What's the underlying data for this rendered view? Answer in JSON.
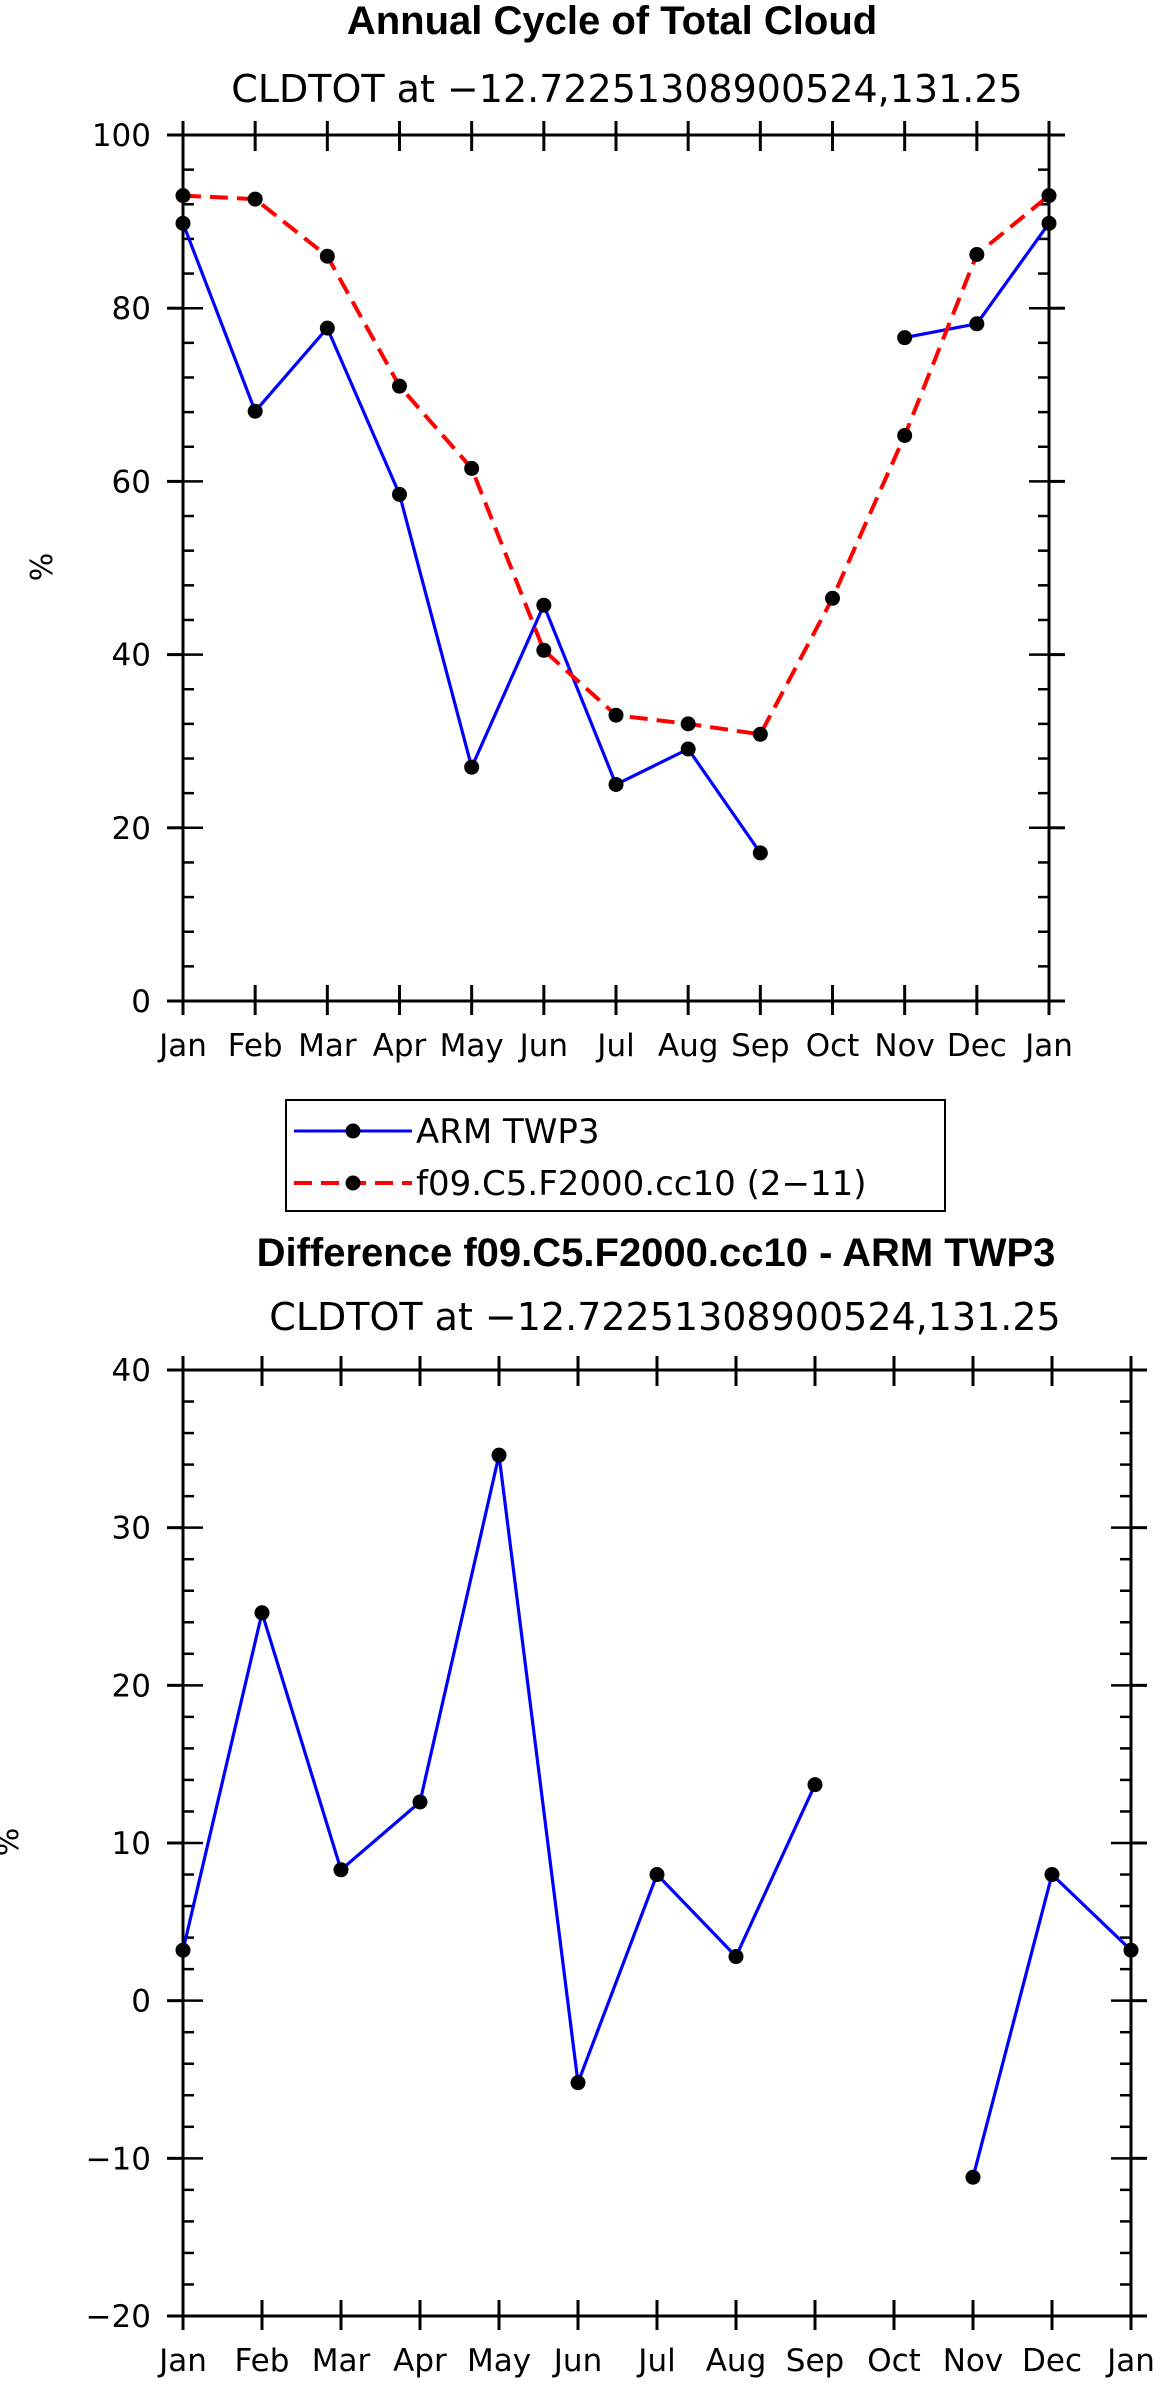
{
  "chart_data": [
    {
      "type": "line",
      "title": "Annual Cycle of Total Cloud",
      "subtitle": "CLDTOT at −12.72251308900524,131.25",
      "xlabel": "",
      "ylabel": "%",
      "categories": [
        "Jan",
        "Feb",
        "Mar",
        "Apr",
        "May",
        "Jun",
        "Jul",
        "Aug",
        "Sep",
        "Oct",
        "Nov",
        "Dec",
        "Jan"
      ],
      "ylim": [
        0,
        100
      ],
      "yticks": [
        0,
        20,
        40,
        60,
        80,
        100
      ],
      "grid": false,
      "series": [
        {
          "name": "ARM TWP3",
          "color": "#0000ff",
          "dash": "solid",
          "values": [
            89.8,
            68.1,
            77.7,
            58.5,
            27.0,
            45.7,
            25.0,
            29.1,
            17.1,
            null,
            76.6,
            78.2,
            89.8
          ]
        },
        {
          "name": "f09.C5.F2000.cc10 (2−11)",
          "color": "#ff0000",
          "dash": "dashed",
          "values": [
            93.0,
            92.6,
            86.0,
            71.0,
            61.5,
            40.5,
            33.0,
            32.0,
            30.8,
            46.5,
            65.3,
            86.2,
            93.0
          ]
        }
      ],
      "legend": {
        "placement": "below",
        "entries": [
          "ARM TWP3",
          "f09.C5.F2000.cc10 (2−11)"
        ]
      }
    },
    {
      "type": "line",
      "title": "Difference f09.C5.F2000.cc10 - ARM TWP3",
      "subtitle": "CLDTOT at −12.72251308900524,131.25",
      "xlabel": "",
      "ylabel": "%",
      "categories": [
        "Jan",
        "Feb",
        "Mar",
        "Apr",
        "May",
        "Jun",
        "Jul",
        "Aug",
        "Sep",
        "Oct",
        "Nov",
        "Dec",
        "Jan"
      ],
      "ylim": [
        -20,
        40
      ],
      "yticks": [
        -20,
        -10,
        0,
        10,
        20,
        30,
        40
      ],
      "ytick_labels": [
        "−20",
        "−10",
        "0",
        "10",
        "20",
        "30",
        "40"
      ],
      "grid": false,
      "series": [
        {
          "name": "Difference",
          "color": "#0000ff",
          "dash": "solid",
          "values": [
            3.2,
            24.6,
            8.3,
            12.6,
            34.6,
            -5.2,
            8.0,
            2.8,
            13.7,
            null,
            -11.2,
            8.0,
            3.2
          ]
        }
      ]
    }
  ]
}
